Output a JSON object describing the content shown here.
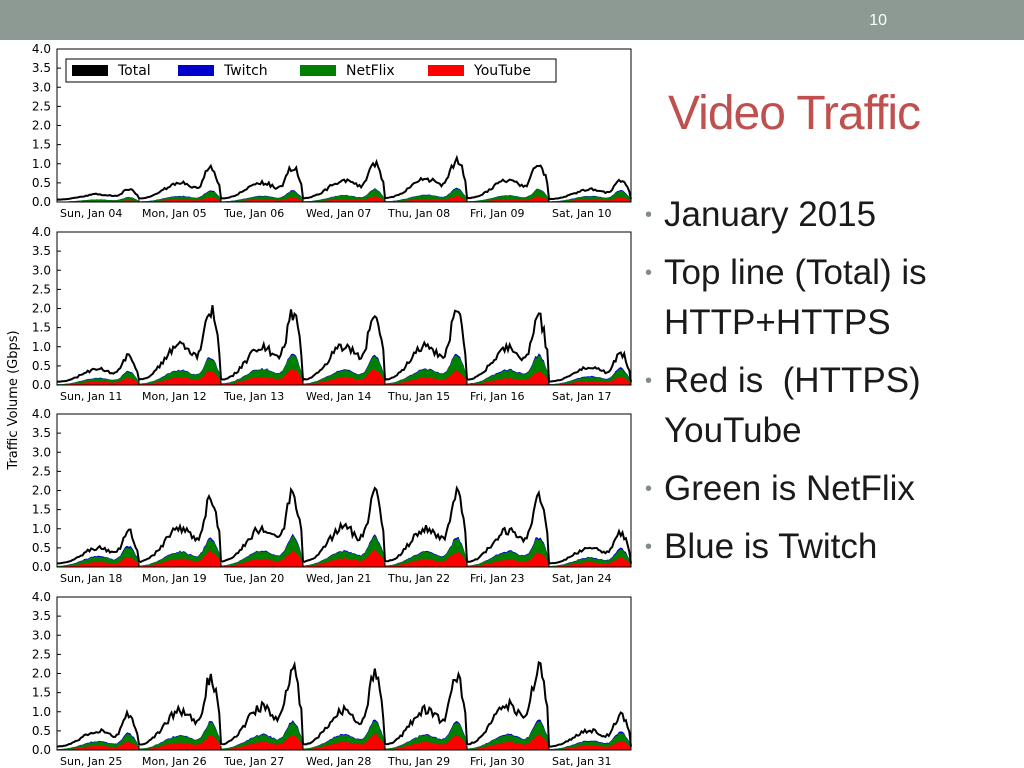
{
  "slide": {
    "page_number": "10",
    "title": "Video Traffic",
    "bullets": [
      "January 2015",
      "Top line (Total) is HTTP+HTTPS",
      "Red is  (HTTPS) YouTube",
      "Green is NetFlix",
      "Blue is Twitch"
    ]
  },
  "colors": {
    "Total": "#000000",
    "Twitch": "#0000cc",
    "NetFlix": "#008000",
    "YouTube": "#ff0000",
    "topbar": "#8c9a93",
    "title": "#c0504d"
  },
  "chart_data": [
    {
      "type": "area",
      "ylabel": "Traffic Volume (Gbps)",
      "ylim": [
        0,
        4.0
      ],
      "yticks": [
        "0.0",
        "0.5",
        "1.0",
        "1.5",
        "2.0",
        "2.5",
        "3.0",
        "3.5",
        "4.0"
      ],
      "grid": false,
      "legend": {
        "position": "top-left",
        "entries": [
          "Total",
          "Twitch",
          "NetFlix",
          "YouTube"
        ]
      },
      "categories": [
        "Sun, Jan 04",
        "Mon, Jan 05",
        "Tue, Jan 06",
        "Wed, Jan 07",
        "Thu, Jan 08",
        "Fri, Jan 09",
        "Sat, Jan 10"
      ],
      "series": [
        {
          "name": "Total",
          "peaks": [
            0.35,
            1.05,
            1.05,
            1.2,
            1.3,
            1.2,
            0.65
          ]
        },
        {
          "name": "Twitch",
          "peaks": [
            0.15,
            0.38,
            0.38,
            0.42,
            0.45,
            0.42,
            0.38
          ]
        },
        {
          "name": "NetFlix",
          "peaks": [
            0.15,
            0.35,
            0.35,
            0.4,
            0.42,
            0.4,
            0.35
          ]
        },
        {
          "name": "YouTube",
          "peaks": [
            0.05,
            0.15,
            0.15,
            0.17,
            0.18,
            0.17,
            0.15
          ]
        }
      ]
    },
    {
      "type": "area",
      "ylim": [
        0,
        4.0
      ],
      "yticks": [
        "0.0",
        "0.5",
        "1.0",
        "1.5",
        "2.0",
        "2.5",
        "3.0",
        "3.5",
        "4.0"
      ],
      "grid": false,
      "categories": [
        "Sun, Jan 11",
        "Mon, Jan 12",
        "Tue, Jan 13",
        "Wed, Jan 14",
        "Thu, Jan 15",
        "Fri, Jan 16",
        "Sat, Jan 17"
      ],
      "series": [
        {
          "name": "Total",
          "peaks": [
            0.85,
            2.3,
            2.2,
            2.25,
            2.25,
            2.1,
            0.95
          ]
        },
        {
          "name": "Twitch",
          "peaks": [
            0.45,
            0.92,
            1.02,
            0.95,
            1.0,
            0.98,
            0.55
          ]
        },
        {
          "name": "NetFlix",
          "peaks": [
            0.42,
            0.88,
            0.98,
            0.9,
            0.95,
            0.92,
            0.5
          ]
        },
        {
          "name": "YouTube",
          "peaks": [
            0.22,
            0.45,
            0.5,
            0.48,
            0.45,
            0.42,
            0.25
          ]
        }
      ]
    },
    {
      "type": "area",
      "ylim": [
        0,
        4.0
      ],
      "yticks": [
        "0.0",
        "0.5",
        "1.0",
        "1.5",
        "2.0",
        "2.5",
        "3.0",
        "3.5",
        "4.0"
      ],
      "grid": false,
      "categories": [
        "Sun, Jan 18",
        "Mon, Jan 19",
        "Tue, Jan 20",
        "Wed, Jan 21",
        "Thu, Jan 22",
        "Fri, Jan 23",
        "Sat, Jan 24"
      ],
      "series": [
        {
          "name": "Total",
          "peaks": [
            1.05,
            2.2,
            2.25,
            2.3,
            2.25,
            2.1,
            1.05
          ]
        },
        {
          "name": "Twitch",
          "peaks": [
            0.68,
            0.95,
            1.0,
            1.0,
            0.95,
            0.98,
            0.6
          ]
        },
        {
          "name": "NetFlix",
          "peaks": [
            0.62,
            0.9,
            0.95,
            0.95,
            0.9,
            0.92,
            0.55
          ]
        },
        {
          "name": "YouTube",
          "peaks": [
            0.3,
            0.5,
            0.5,
            0.52,
            0.48,
            0.45,
            0.3
          ]
        }
      ]
    },
    {
      "type": "area",
      "ylim": [
        0,
        4.0
      ],
      "yticks": [
        "0.0",
        "0.5",
        "1.0",
        "1.5",
        "2.0",
        "2.5",
        "3.0",
        "3.5",
        "4.0"
      ],
      "grid": false,
      "categories": [
        "Sun, Jan 25",
        "Mon, Jan 26",
        "Tue, Jan 27",
        "Wed, Jan 28",
        "Thu, Jan 29",
        "Fri, Jan 30",
        "Sat, Jan 31"
      ],
      "series": [
        {
          "name": "Total",
          "peaks": [
            1.05,
            2.25,
            2.5,
            2.3,
            2.35,
            2.65,
            1.05
          ]
        },
        {
          "name": "Twitch",
          "peaks": [
            0.55,
            0.92,
            0.95,
            0.95,
            0.95,
            0.98,
            0.6
          ]
        },
        {
          "name": "NetFlix",
          "peaks": [
            0.5,
            0.88,
            0.9,
            0.9,
            0.9,
            0.92,
            0.55
          ]
        },
        {
          "name": "YouTube",
          "peaks": [
            0.25,
            0.45,
            0.48,
            0.48,
            0.48,
            0.48,
            0.28
          ]
        }
      ]
    }
  ]
}
